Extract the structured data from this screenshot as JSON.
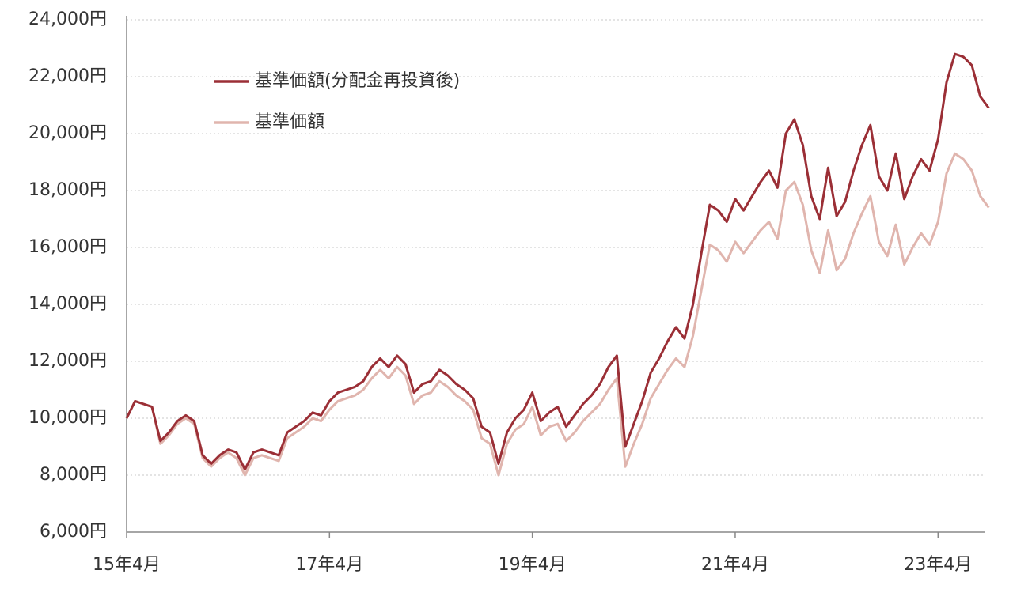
{
  "chart_data": {
    "type": "line",
    "categories": [
      "15年4月",
      null,
      null,
      null,
      null,
      null,
      null,
      null,
      null,
      null,
      null,
      null,
      null,
      null,
      null,
      null,
      null,
      null,
      null,
      null,
      null,
      null,
      null,
      null,
      "17年4月",
      null,
      null,
      null,
      null,
      null,
      null,
      null,
      null,
      null,
      null,
      null,
      null,
      null,
      null,
      null,
      null,
      null,
      null,
      null,
      null,
      null,
      null,
      null,
      "19年4月",
      null,
      null,
      null,
      null,
      null,
      null,
      null,
      null,
      null,
      null,
      null,
      null,
      null,
      null,
      null,
      null,
      null,
      null,
      null,
      null,
      null,
      null,
      null,
      "21年4月",
      null,
      null,
      null,
      null,
      null,
      null,
      null,
      null,
      null,
      null,
      null,
      null,
      null,
      null,
      null,
      null,
      null,
      null,
      null,
      null,
      null,
      null,
      null,
      "23年4月",
      null,
      null,
      null,
      null,
      null,
      null
    ],
    "series": [
      {
        "name": "基準価額(分配金再投資後)",
        "color": "#9b2f36",
        "values": [
          10000,
          10600,
          10500,
          10400,
          9200,
          9500,
          9900,
          10100,
          9900,
          8700,
          8400,
          8700,
          8900,
          8800,
          8200,
          8800,
          8900,
          8800,
          8700,
          9500,
          9700,
          9900,
          10200,
          10100,
          10600,
          10900,
          11000,
          11100,
          11300,
          11800,
          12100,
          11800,
          12200,
          11900,
          10900,
          11200,
          11300,
          11700,
          11500,
          11200,
          11000,
          10700,
          9700,
          9500,
          8400,
          9500,
          10000,
          10300,
          10900,
          9900,
          10200,
          10400,
          9700,
          10100,
          10500,
          10800,
          11200,
          11800,
          12200,
          9000,
          9800,
          10600,
          11600,
          12100,
          12700,
          13200,
          12800,
          14000,
          15800,
          17500,
          17300,
          16900,
          17700,
          17300,
          17800,
          18300,
          18700,
          18100,
          20000,
          20500,
          19600,
          17800,
          17000,
          18800,
          17100,
          17600,
          18700,
          19600,
          20300,
          18500,
          18000,
          19300,
          17700,
          18500,
          19100,
          18700,
          19800,
          21800,
          22800,
          22700,
          22400,
          21300,
          20900
        ]
      },
      {
        "name": "基準価額",
        "color": "#e0b5ae",
        "values": [
          10000,
          10600,
          10500,
          10400,
          9100,
          9400,
          9800,
          10000,
          9800,
          8600,
          8300,
          8600,
          8800,
          8600,
          8000,
          8600,
          8700,
          8600,
          8500,
          9300,
          9500,
          9700,
          10000,
          9900,
          10300,
          10600,
          10700,
          10800,
          11000,
          11400,
          11700,
          11400,
          11800,
          11500,
          10500,
          10800,
          10900,
          11300,
          11100,
          10800,
          10600,
          10300,
          9300,
          9100,
          8000,
          9100,
          9600,
          9800,
          10400,
          9400,
          9700,
          9800,
          9200,
          9500,
          9900,
          10200,
          10500,
          11000,
          11400,
          8300,
          9100,
          9800,
          10700,
          11200,
          11700,
          12100,
          11800,
          12900,
          14500,
          16100,
          15900,
          15500,
          16200,
          15800,
          16200,
          16600,
          16900,
          16300,
          18000,
          18300,
          17500,
          15900,
          15100,
          16600,
          15200,
          15600,
          16500,
          17200,
          17800,
          16200,
          15700,
          16800,
          15400,
          16000,
          16500,
          16100,
          16900,
          18600,
          19300,
          19100,
          18700,
          17800,
          17400
        ]
      }
    ],
    "ylim": [
      6000,
      24000
    ],
    "yticks": [
      {
        "value": 6000,
        "label": "6,000円"
      },
      {
        "value": 8000,
        "label": "8,000円"
      },
      {
        "value": 10000,
        "label": "10,000円"
      },
      {
        "value": 12000,
        "label": "12,000円"
      },
      {
        "value": 14000,
        "label": "14,000円"
      },
      {
        "value": 16000,
        "label": "16,000円"
      },
      {
        "value": 18000,
        "label": "18,000円"
      },
      {
        "value": 20000,
        "label": "20,000円"
      },
      {
        "value": 22000,
        "label": "22,000円"
      },
      {
        "value": 24000,
        "label": "24,000円"
      }
    ],
    "grid": true
  }
}
